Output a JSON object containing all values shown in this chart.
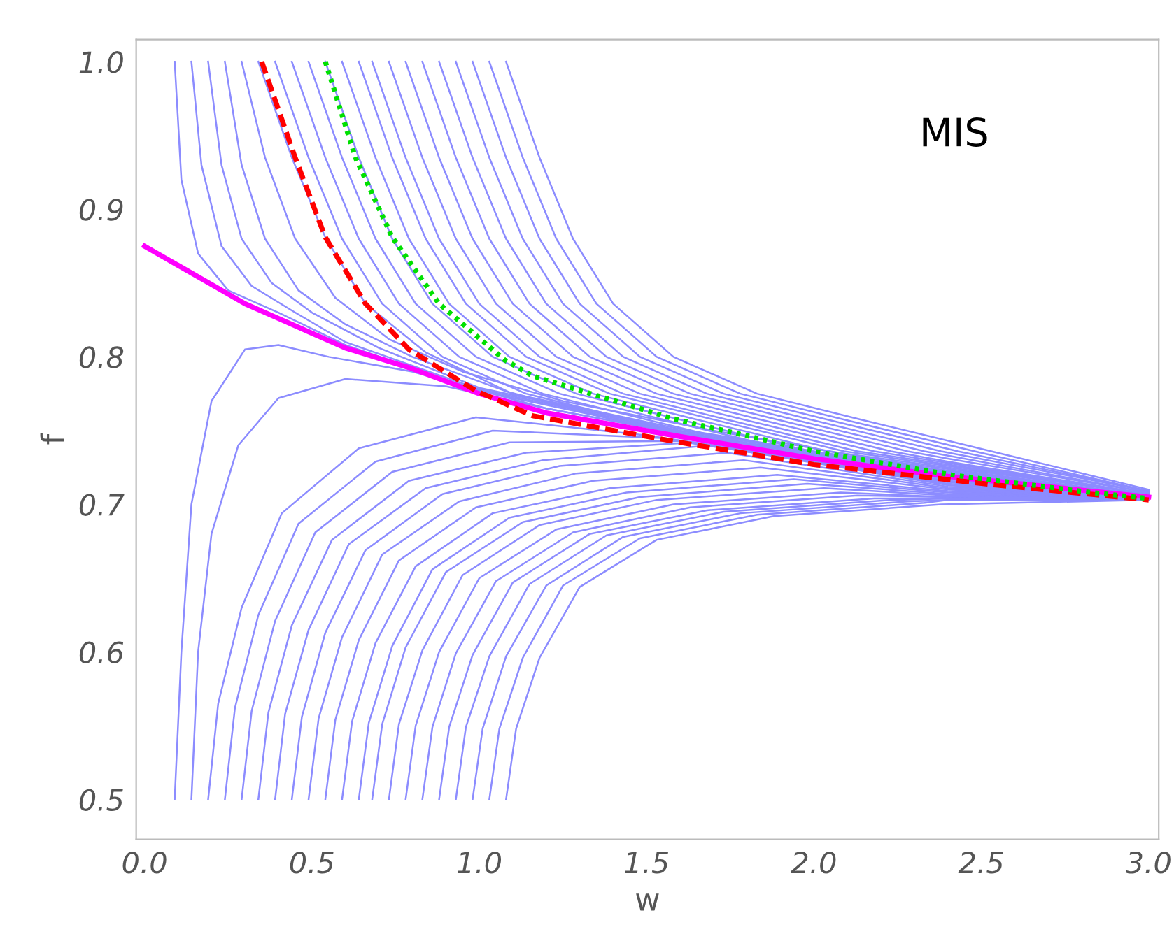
{
  "chart_data": {
    "type": "line",
    "xlabel": "w",
    "ylabel": "f",
    "annotations": [
      "MIS"
    ],
    "xlim": [
      -0.025,
      3.03
    ],
    "ylim": [
      0.473,
      1.015
    ],
    "xticks": [
      {
        "value": 0,
        "label": "0.0"
      },
      {
        "value": 0.5,
        "label": "0.5"
      },
      {
        "value": 1,
        "label": "1.0"
      },
      {
        "value": 1.5,
        "label": "1.5"
      },
      {
        "value": 2,
        "label": "2.0"
      },
      {
        "value": 2.5,
        "label": "2.5"
      },
      {
        "value": 3,
        "label": "3.0"
      }
    ],
    "yticks": [
      {
        "value": 0.5,
        "label": "0.5"
      },
      {
        "value": 0.6,
        "label": "0.6"
      },
      {
        "value": 0.7,
        "label": "0.7"
      },
      {
        "value": 0.8,
        "label": "0.8"
      },
      {
        "value": 0.9,
        "label": "0.9"
      },
      {
        "value": 1,
        "label": "1.0"
      }
    ],
    "grid": false,
    "line_style": "solid",
    "series": [
      {
        "color": "#8c8cff",
        "x": [
          0.09,
          0.11,
          0.16,
          0.25,
          0.4,
          0.6,
          1.0,
          1.6,
          2.4,
          3.0
        ],
        "values": [
          1.0,
          0.92,
          0.87,
          0.845,
          0.83,
          0.808,
          0.777,
          0.748,
          0.72,
          0.706
        ]
      },
      {
        "color": "#8c8cff",
        "x": [
          0.14,
          0.17,
          0.23,
          0.32,
          0.45,
          0.6,
          1.0,
          1.6,
          2.4,
          3.0
        ],
        "values": [
          1.0,
          0.93,
          0.875,
          0.848,
          0.83,
          0.81,
          0.778,
          0.749,
          0.72,
          0.706
        ]
      },
      {
        "color": "#8c8cff",
        "x": [
          0.19,
          0.23,
          0.29,
          0.38,
          0.5,
          0.7,
          1.0,
          1.6,
          2.4,
          3.0
        ],
        "values": [
          1.0,
          0.93,
          0.88,
          0.85,
          0.83,
          0.806,
          0.779,
          0.75,
          0.721,
          0.706
        ]
      },
      {
        "color": "#8c8cff",
        "x": [
          0.24,
          0.29,
          0.36,
          0.46,
          0.6,
          0.8,
          1.1,
          1.6,
          2.4,
          3.0
        ],
        "values": [
          1.0,
          0.93,
          0.88,
          0.845,
          0.822,
          0.8,
          0.775,
          0.751,
          0.721,
          0.706
        ]
      },
      {
        "color": "#8c8cff",
        "x": [
          0.29,
          0.36,
          0.45,
          0.57,
          0.73,
          0.95,
          1.25,
          1.7,
          2.4,
          3.0
        ],
        "values": [
          1.0,
          0.935,
          0.88,
          0.84,
          0.812,
          0.79,
          0.77,
          0.75,
          0.722,
          0.706
        ]
      },
      {
        "color": "#8c8cff",
        "x": [
          0.34,
          0.44,
          0.54,
          0.66,
          0.84,
          1.09,
          1.39,
          1.79,
          2.4,
          3.0
        ],
        "values": [
          1.0,
          0.935,
          0.881,
          0.836,
          0.803,
          0.776,
          0.758,
          0.74,
          0.72,
          0.705
        ]
      },
      {
        "color": "#8c8cff",
        "x": [
          0.39,
          0.49,
          0.59,
          0.71,
          0.89,
          1.14,
          1.44,
          1.84,
          2.4,
          3.0
        ],
        "values": [
          1.0,
          0.935,
          0.88,
          0.836,
          0.8,
          0.775,
          0.758,
          0.736,
          0.722,
          0.706
        ]
      },
      {
        "color": "#8c8cff",
        "x": [
          0.44,
          0.54,
          0.64,
          0.76,
          0.94,
          1.19,
          1.49,
          1.89,
          2.4,
          3.0
        ],
        "values": [
          1.0,
          0.935,
          0.88,
          0.836,
          0.8,
          0.775,
          0.758,
          0.736,
          0.722,
          0.706
        ]
      },
      {
        "color": "#8c8cff",
        "x": [
          0.49,
          0.59,
          0.69,
          0.81,
          0.99,
          1.24,
          1.54,
          1.94,
          2.4,
          3.0
        ],
        "values": [
          1.0,
          0.935,
          0.88,
          0.836,
          0.8,
          0.775,
          0.758,
          0.736,
          0.723,
          0.706
        ]
      },
      {
        "color": "#8c8cff",
        "x": [
          0.54,
          0.64,
          0.74,
          0.86,
          1.04,
          1.29,
          1.59,
          1.99,
          2.4,
          3.0
        ],
        "values": [
          1.0,
          0.935,
          0.88,
          0.836,
          0.8,
          0.775,
          0.758,
          0.736,
          0.724,
          0.706
        ]
      },
      {
        "color": "#8c8cff",
        "x": [
          0.59,
          0.69,
          0.79,
          0.91,
          1.09,
          1.34,
          1.64,
          2.04,
          2.4,
          3.0
        ],
        "values": [
          1.0,
          0.935,
          0.88,
          0.836,
          0.8,
          0.775,
          0.758,
          0.736,
          0.725,
          0.707
        ]
      },
      {
        "color": "#8c8cff",
        "x": [
          0.64,
          0.74,
          0.84,
          0.96,
          1.14,
          1.39,
          1.69,
          2.09,
          2.4,
          3.0
        ],
        "values": [
          1.0,
          0.935,
          0.88,
          0.836,
          0.8,
          0.775,
          0.758,
          0.736,
          0.726,
          0.707
        ]
      },
      {
        "color": "#8c8cff",
        "x": [
          0.68,
          0.78,
          0.88,
          1.0,
          1.18,
          1.43,
          1.73,
          2.13,
          2.4,
          3.0
        ],
        "values": [
          1.0,
          0.935,
          0.88,
          0.836,
          0.8,
          0.775,
          0.758,
          0.736,
          0.727,
          0.707
        ]
      },
      {
        "color": "#8c8cff",
        "x": [
          0.73,
          0.83,
          0.93,
          1.05,
          1.23,
          1.48,
          1.78,
          2.18,
          2.4,
          3.0
        ],
        "values": [
          1.0,
          0.935,
          0.88,
          0.836,
          0.8,
          0.775,
          0.758,
          0.736,
          0.728,
          0.707
        ]
      },
      {
        "color": "#8c8cff",
        "x": [
          0.78,
          0.88,
          0.98,
          1.1,
          1.28,
          1.53,
          1.83,
          2.23,
          2.4,
          3.0
        ],
        "values": [
          1.0,
          0.935,
          0.88,
          0.836,
          0.8,
          0.775,
          0.758,
          0.736,
          0.729,
          0.707
        ]
      },
      {
        "color": "#8c8cff",
        "x": [
          0.83,
          0.93,
          1.03,
          1.15,
          1.33,
          1.58,
          1.88,
          2.28,
          2.4,
          3.0
        ],
        "values": [
          1.0,
          0.935,
          0.88,
          0.836,
          0.8,
          0.775,
          0.758,
          0.736,
          0.731,
          0.708
        ]
      },
      {
        "color": "#8c8cff",
        "x": [
          0.88,
          0.98,
          1.08,
          1.2,
          1.38,
          1.63,
          1.93,
          2.33,
          3.0
        ],
        "values": [
          1.0,
          0.935,
          0.88,
          0.836,
          0.8,
          0.775,
          0.758,
          0.736,
          0.708
        ]
      },
      {
        "color": "#8c8cff",
        "x": [
          0.93,
          1.03,
          1.13,
          1.25,
          1.43,
          1.68,
          1.98,
          2.38,
          3.0
        ],
        "values": [
          1.0,
          0.935,
          0.88,
          0.836,
          0.8,
          0.775,
          0.758,
          0.736,
          0.709
        ]
      },
      {
        "color": "#8c8cff",
        "x": [
          0.98,
          1.08,
          1.18,
          1.3,
          1.48,
          1.73,
          2.03,
          2.43,
          3.0
        ],
        "values": [
          1.0,
          0.935,
          0.88,
          0.836,
          0.8,
          0.775,
          0.758,
          0.736,
          0.709
        ]
      },
      {
        "color": "#8c8cff",
        "x": [
          1.03,
          1.13,
          1.23,
          1.35,
          1.53,
          1.78,
          2.08,
          2.48,
          3.0
        ],
        "values": [
          1.0,
          0.935,
          0.88,
          0.836,
          0.8,
          0.775,
          0.758,
          0.736,
          0.709
        ]
      },
      {
        "color": "#8c8cff",
        "x": [
          1.08,
          1.18,
          1.28,
          1.4,
          1.58,
          1.83,
          2.13,
          2.53,
          3.0
        ],
        "values": [
          1.0,
          0.935,
          0.88,
          0.836,
          0.8,
          0.775,
          0.758,
          0.736,
          0.71
        ]
      },
      {
        "color": "#8c8cff",
        "x": [
          0.09,
          0.11,
          0.14,
          0.2,
          0.3,
          0.4,
          0.55,
          0.8,
          1.2,
          1.6,
          2.4,
          3.0
        ],
        "values": [
          0.5,
          0.6,
          0.7,
          0.77,
          0.805,
          0.808,
          0.8,
          0.79,
          0.765,
          0.748,
          0.72,
          0.705
        ]
      },
      {
        "color": "#8c8cff",
        "x": [
          0.14,
          0.16,
          0.2,
          0.28,
          0.4,
          0.6,
          0.9,
          1.2,
          1.6,
          2.4,
          3.0
        ],
        "values": [
          0.5,
          0.6,
          0.68,
          0.74,
          0.772,
          0.785,
          0.78,
          0.765,
          0.748,
          0.72,
          0.705
        ]
      },
      {
        "color": "#8c8cff",
        "x": [
          0.19,
          0.22,
          0.29,
          0.41,
          0.64,
          0.99,
          1.49,
          2.4,
          3.0
        ],
        "values": [
          0.5,
          0.565,
          0.63,
          0.694,
          0.738,
          0.759,
          0.747,
          0.717,
          0.704
        ]
      },
      {
        "color": "#8c8cff",
        "x": [
          0.24,
          0.27,
          0.34,
          0.46,
          0.69,
          1.04,
          1.54,
          2.4,
          3.0
        ],
        "values": [
          0.5,
          0.562,
          0.625,
          0.687,
          0.729,
          0.75,
          0.745,
          0.716,
          0.704
        ]
      },
      {
        "color": "#8c8cff",
        "x": [
          0.29,
          0.32,
          0.39,
          0.51,
          0.74,
          1.09,
          1.59,
          2.4,
          3.0
        ],
        "values": [
          0.5,
          0.56,
          0.621,
          0.681,
          0.722,
          0.742,
          0.743,
          0.715,
          0.704
        ]
      },
      {
        "color": "#8c8cff",
        "x": [
          0.34,
          0.37,
          0.44,
          0.56,
          0.79,
          1.14,
          1.64,
          2.4,
          3.0
        ],
        "values": [
          0.5,
          0.559,
          0.618,
          0.676,
          0.716,
          0.735,
          0.742,
          0.714,
          0.704
        ]
      },
      {
        "color": "#8c8cff",
        "x": [
          0.39,
          0.42,
          0.49,
          0.61,
          0.84,
          1.19,
          1.69,
          2.4,
          3.0
        ],
        "values": [
          0.5,
          0.558,
          0.615,
          0.673,
          0.711,
          0.73,
          0.74,
          0.713,
          0.704
        ]
      },
      {
        "color": "#8c8cff",
        "x": [
          0.44,
          0.47,
          0.54,
          0.66,
          0.89,
          1.24,
          1.74,
          2.4,
          3.0
        ],
        "values": [
          0.5,
          0.556,
          0.613,
          0.669,
          0.707,
          0.726,
          0.735,
          0.712,
          0.704
        ]
      },
      {
        "color": "#8c8cff",
        "x": [
          0.49,
          0.52,
          0.59,
          0.71,
          0.94,
          1.29,
          1.79,
          2.4,
          3.0
        ],
        "values": [
          0.5,
          0.555,
          0.61,
          0.666,
          0.702,
          0.721,
          0.73,
          0.711,
          0.704
        ]
      },
      {
        "color": "#8c8cff",
        "x": [
          0.54,
          0.57,
          0.64,
          0.76,
          0.99,
          1.34,
          1.84,
          2.4,
          3.0
        ],
        "values": [
          0.5,
          0.554,
          0.608,
          0.662,
          0.698,
          0.716,
          0.725,
          0.71,
          0.704
        ]
      },
      {
        "color": "#8c8cff",
        "x": [
          0.59,
          0.62,
          0.69,
          0.81,
          1.04,
          1.39,
          1.89,
          2.4,
          3.0
        ],
        "values": [
          0.5,
          0.553,
          0.606,
          0.658,
          0.694,
          0.711,
          0.72,
          0.709,
          0.704
        ]
      },
      {
        "color": "#8c8cff",
        "x": [
          0.64,
          0.67,
          0.74,
          0.86,
          1.09,
          1.44,
          1.94,
          2.4,
          3.0
        ],
        "values": [
          0.5,
          0.552,
          0.604,
          0.656,
          0.691,
          0.708,
          0.717,
          0.708,
          0.704
        ]
      },
      {
        "color": "#8c8cff",
        "x": [
          0.68,
          0.71,
          0.78,
          0.9,
          1.13,
          1.48,
          1.98,
          2.4,
          3.0
        ],
        "values": [
          0.5,
          0.551,
          0.603,
          0.654,
          0.688,
          0.705,
          0.714,
          0.707,
          0.704
        ]
      },
      {
        "color": "#8c8cff",
        "x": [
          0.73,
          0.76,
          0.83,
          0.95,
          1.18,
          1.53,
          2.03,
          2.4,
          3.0
        ],
        "values": [
          0.5,
          0.551,
          0.601,
          0.652,
          0.686,
          0.703,
          0.711,
          0.706,
          0.704
        ]
      },
      {
        "color": "#8c8cff",
        "x": [
          0.78,
          0.81,
          0.88,
          1.0,
          1.23,
          1.58,
          2.08,
          2.4,
          3.0
        ],
        "values": [
          0.5,
          0.55,
          0.6,
          0.65,
          0.683,
          0.7,
          0.708,
          0.705,
          0.704
        ]
      },
      {
        "color": "#8c8cff",
        "x": [
          0.83,
          0.86,
          0.93,
          1.05,
          1.28,
          1.63,
          2.13,
          2.4,
          3.0
        ],
        "values": [
          0.5,
          0.549,
          0.599,
          0.648,
          0.681,
          0.698,
          0.706,
          0.705,
          0.704
        ]
      },
      {
        "color": "#8c8cff",
        "x": [
          0.88,
          0.91,
          0.98,
          1.1,
          1.33,
          1.68,
          2.18,
          2.4,
          3.0
        ],
        "values": [
          0.5,
          0.549,
          0.598,
          0.647,
          0.68,
          0.696,
          0.704,
          0.704,
          0.703
        ]
      },
      {
        "color": "#8c8cff",
        "x": [
          0.93,
          0.96,
          1.03,
          1.15,
          1.38,
          1.73,
          2.23,
          2.4,
          3.0
        ],
        "values": [
          0.5,
          0.549,
          0.597,
          0.646,
          0.679,
          0.695,
          0.703,
          0.704,
          0.703
        ]
      },
      {
        "color": "#8c8cff",
        "x": [
          0.98,
          1.01,
          1.08,
          1.2,
          1.43,
          1.78,
          2.28,
          2.4,
          3.0
        ],
        "values": [
          0.5,
          0.548,
          0.597,
          0.645,
          0.678,
          0.694,
          0.702,
          0.703,
          0.703
        ]
      },
      {
        "color": "#8c8cff",
        "x": [
          1.03,
          1.06,
          1.13,
          1.25,
          1.48,
          1.83,
          2.33,
          2.4,
          3.0
        ],
        "values": [
          0.5,
          0.548,
          0.596,
          0.645,
          0.677,
          0.693,
          0.701,
          0.703,
          0.703
        ]
      },
      {
        "color": "#8c8cff",
        "x": [
          1.08,
          1.11,
          1.18,
          1.3,
          1.53,
          1.88,
          2.38,
          3.0
        ],
        "values": [
          0.5,
          0.548,
          0.596,
          0.644,
          0.676,
          0.692,
          0.7,
          0.703
        ]
      },
      {
        "color": "#ff00ff",
        "x": [
          0.0,
          0.1,
          0.2,
          0.3,
          0.4,
          0.5,
          0.6,
          0.8,
          1.0,
          1.2,
          1.6,
          2.0,
          2.4,
          3.0
        ],
        "values": [
          0.875,
          0.862,
          0.849,
          0.836,
          0.826,
          0.816,
          0.806,
          0.792,
          0.775,
          0.762,
          0.746,
          0.731,
          0.719,
          0.705
        ]
      },
      {
        "color": "#ff0000",
        "line_style": "dashed",
        "x": [
          0.35,
          0.45,
          0.54,
          0.66,
          0.79,
          0.99,
          1.16,
          1.6,
          2.0,
          2.55,
          3.0
        ],
        "values": [
          1.0,
          0.935,
          0.881,
          0.836,
          0.805,
          0.777,
          0.76,
          0.742,
          0.727,
          0.713,
          0.703
        ]
      },
      {
        "color": "#00e000",
        "line_style": "dotted",
        "x": [
          0.54,
          0.63,
          0.74,
          0.88,
          1.075,
          1.16,
          1.58,
          2.0,
          2.41,
          2.83,
          3.0
        ],
        "values": [
          1.0,
          0.935,
          0.881,
          0.836,
          0.798,
          0.787,
          0.758,
          0.736,
          0.72,
          0.708,
          0.704
        ]
      }
    ]
  }
}
